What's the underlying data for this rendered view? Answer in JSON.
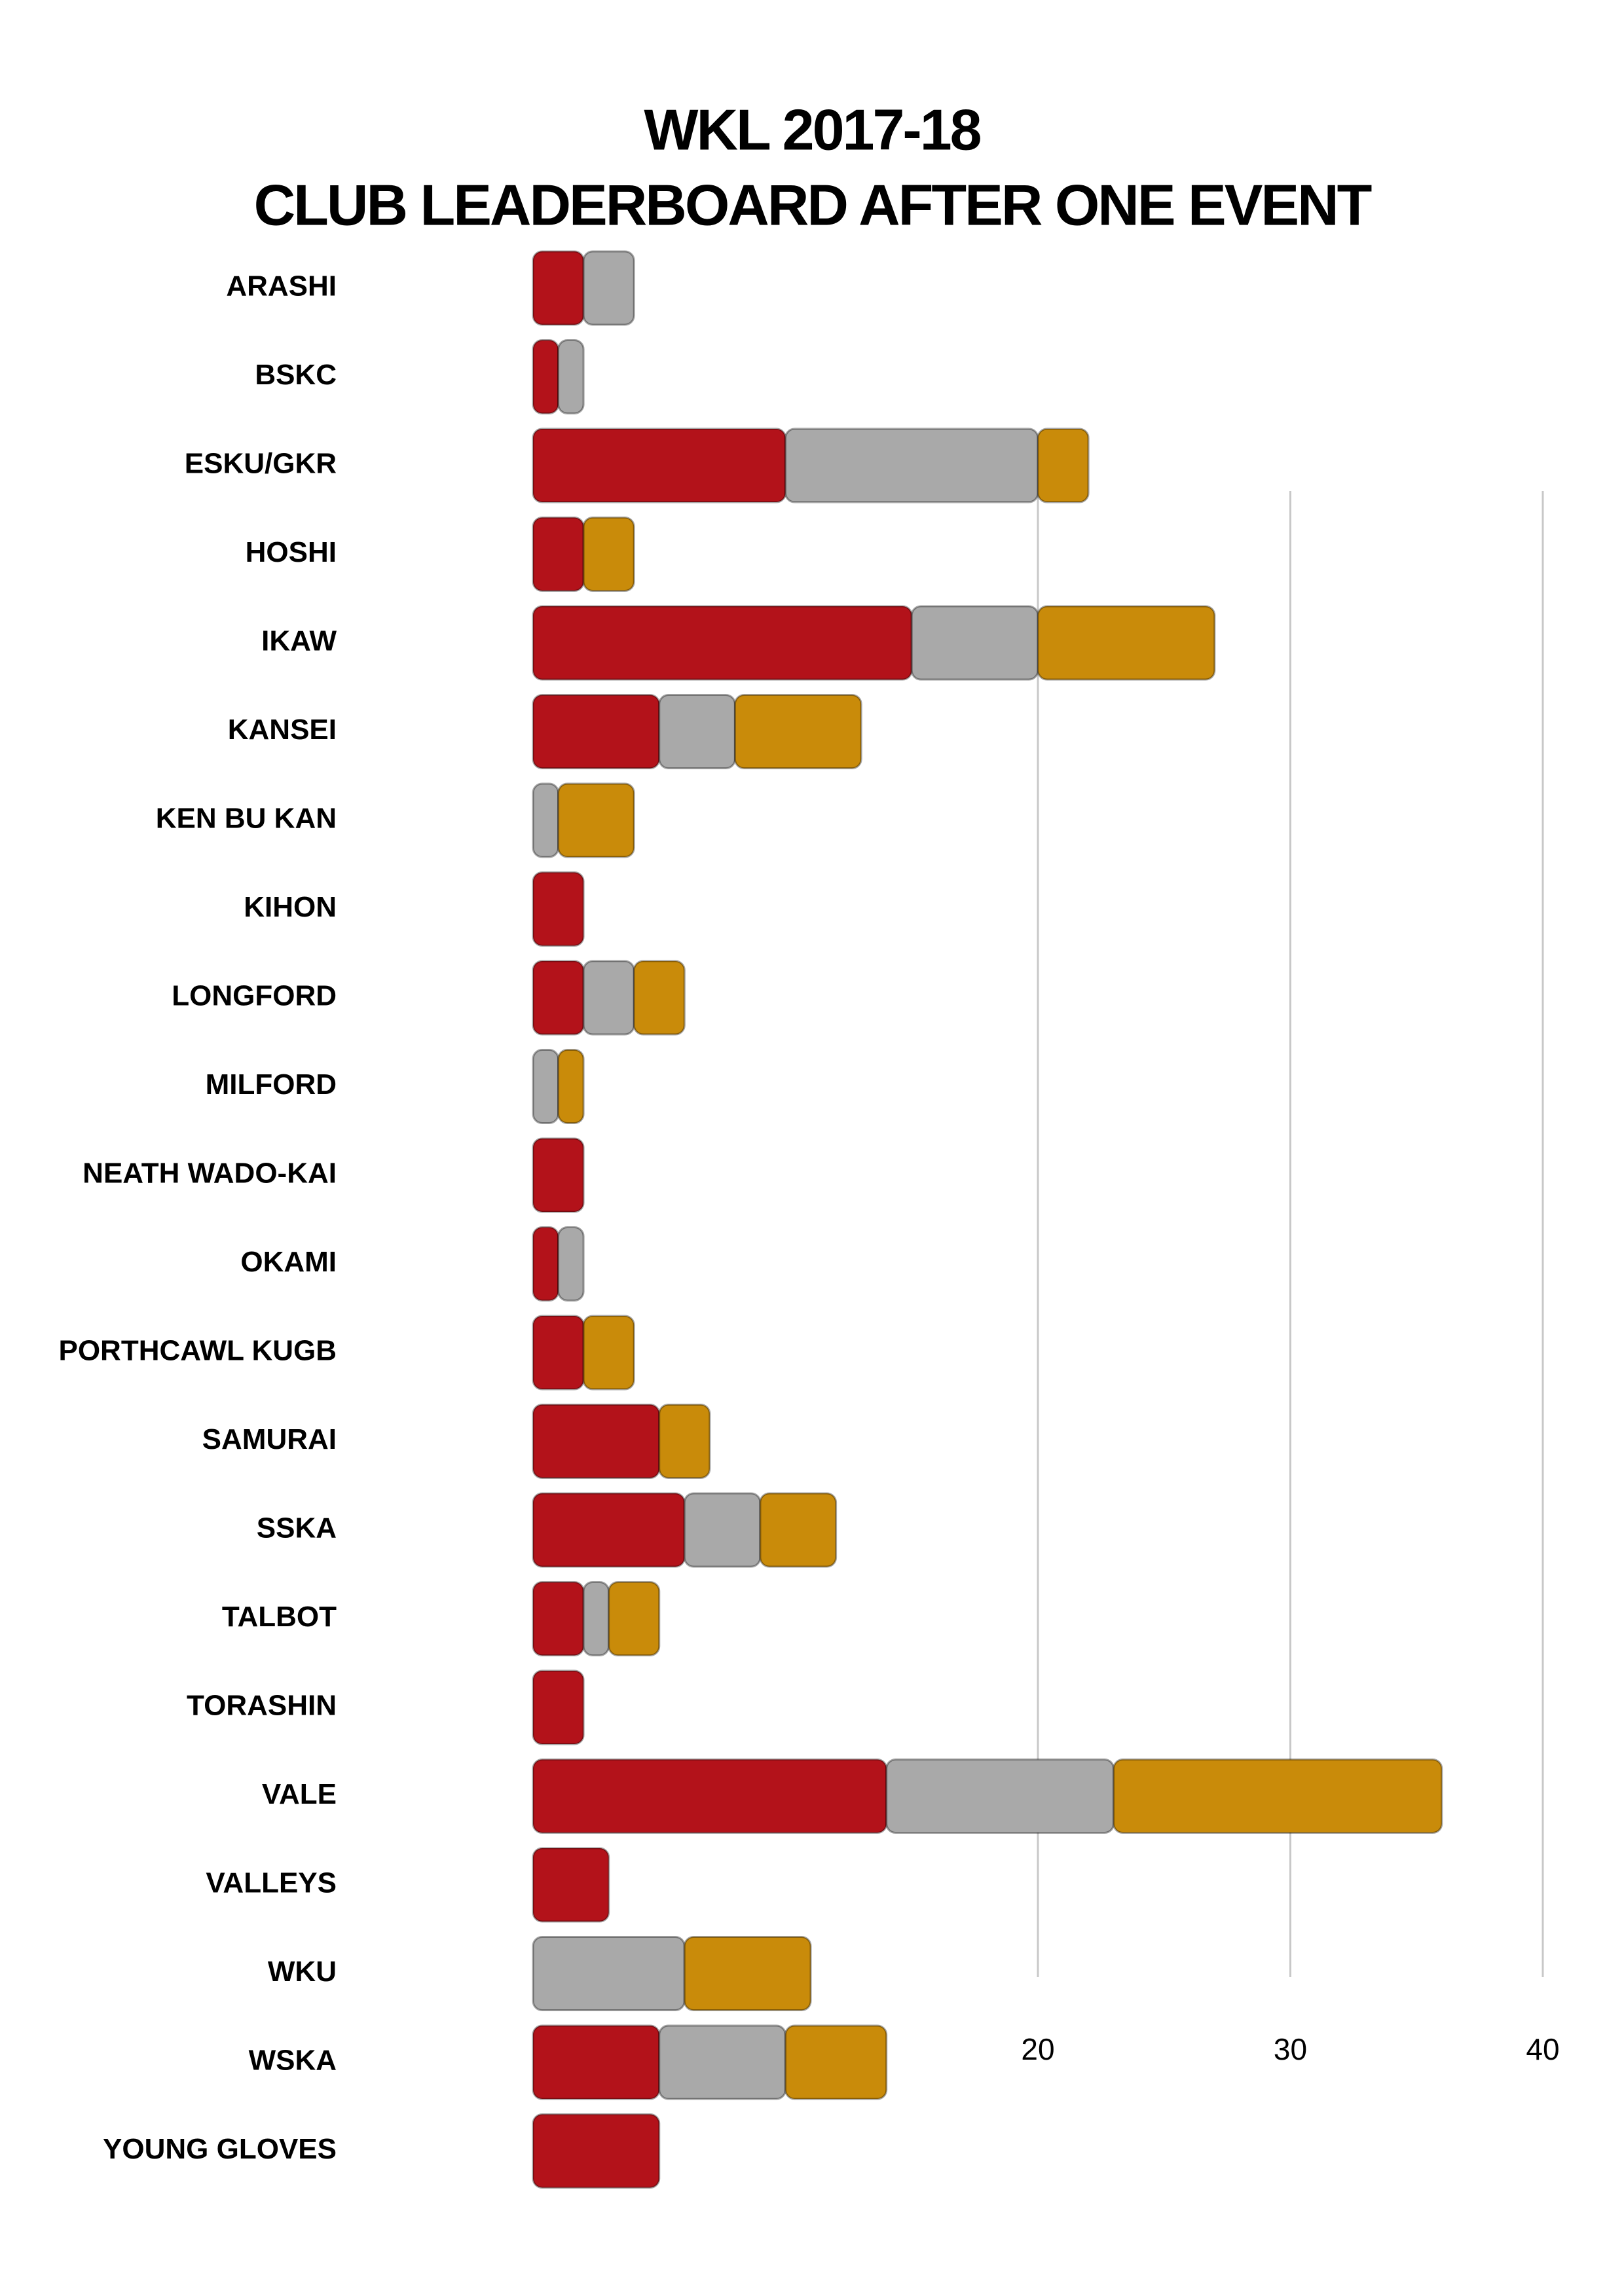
{
  "chart_data": {
    "type": "stacked-barh",
    "title": "WKL 2017-18",
    "subtitle": "CLUB LEADERBOARD AFTER ONE EVENT",
    "categories": [
      "ARASHI",
      "BSKC",
      "ESKU/GKR",
      "HOSHI",
      "IKAW",
      "KANSEI",
      "KEN BU KAN",
      "KIHON",
      "LONGFORD",
      "MILFORD",
      "NEATH WADO-KAI",
      "OKAMI",
      "PORTHCAWL KUGB",
      "SAMURAI",
      "SSKA",
      "TALBOT",
      "TORASHIN",
      "VALE",
      "VALLEYS",
      "WKU",
      "WSKA",
      "YOUNG GLOVES"
    ],
    "series": [
      {
        "color": "#b3121a",
        "values": [
          2,
          1,
          10,
          2,
          15,
          5,
          0,
          2,
          2,
          0,
          2,
          1,
          2,
          5,
          6,
          2,
          2,
          14,
          3,
          0,
          5,
          5
        ]
      },
      {
        "color": "#a9a9a9",
        "values": [
          2,
          1,
          10,
          0,
          5,
          3,
          1,
          0,
          2,
          1,
          0,
          1,
          0,
          0,
          3,
          1,
          0,
          9,
          0,
          6,
          5,
          0
        ]
      },
      {
        "color": "#c98b0a",
        "values": [
          0,
          0,
          2,
          2,
          7,
          5,
          3,
          0,
          2,
          1,
          0,
          0,
          2,
          2,
          3,
          2,
          0,
          13,
          0,
          5,
          4,
          0
        ]
      }
    ],
    "xlim": [
      0,
      40
    ],
    "xticks": [
      20,
      30,
      40
    ],
    "grid": true
  }
}
